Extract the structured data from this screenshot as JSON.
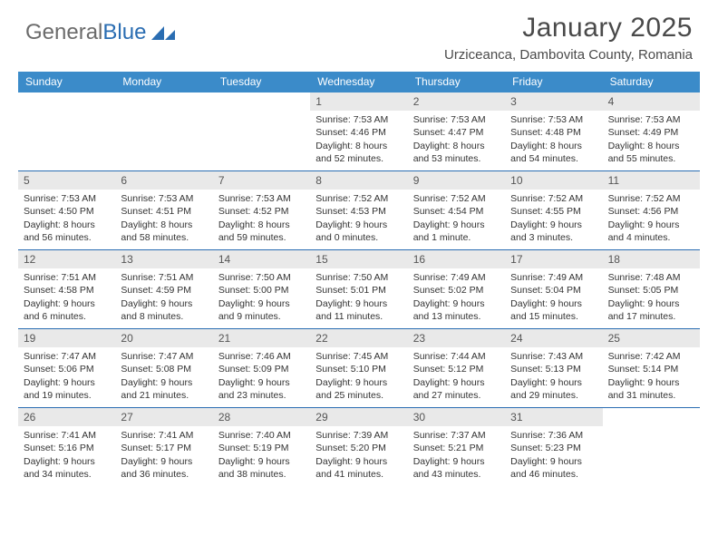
{
  "logo": {
    "text1": "General",
    "text2": "Blue"
  },
  "header": {
    "month": "January 2025",
    "location": "Urziceanca, Dambovita County, Romania"
  },
  "colors": {
    "header_bg": "#3b8bc9",
    "week_divider": "#2a6db2",
    "daynum_bg": "#e9e9e9",
    "logo_gray": "#6b6b6b",
    "logo_blue": "#2a6db2"
  },
  "dayNames": [
    "Sunday",
    "Monday",
    "Tuesday",
    "Wednesday",
    "Thursday",
    "Friday",
    "Saturday"
  ],
  "startOffset": 3,
  "days": [
    {
      "n": 1,
      "sunrise": "7:53 AM",
      "sunset": "4:46 PM",
      "daylight": "8 hours and 52 minutes."
    },
    {
      "n": 2,
      "sunrise": "7:53 AM",
      "sunset": "4:47 PM",
      "daylight": "8 hours and 53 minutes."
    },
    {
      "n": 3,
      "sunrise": "7:53 AM",
      "sunset": "4:48 PM",
      "daylight": "8 hours and 54 minutes."
    },
    {
      "n": 4,
      "sunrise": "7:53 AM",
      "sunset": "4:49 PM",
      "daylight": "8 hours and 55 minutes."
    },
    {
      "n": 5,
      "sunrise": "7:53 AM",
      "sunset": "4:50 PM",
      "daylight": "8 hours and 56 minutes."
    },
    {
      "n": 6,
      "sunrise": "7:53 AM",
      "sunset": "4:51 PM",
      "daylight": "8 hours and 58 minutes."
    },
    {
      "n": 7,
      "sunrise": "7:53 AM",
      "sunset": "4:52 PM",
      "daylight": "8 hours and 59 minutes."
    },
    {
      "n": 8,
      "sunrise": "7:52 AM",
      "sunset": "4:53 PM",
      "daylight": "9 hours and 0 minutes."
    },
    {
      "n": 9,
      "sunrise": "7:52 AM",
      "sunset": "4:54 PM",
      "daylight": "9 hours and 1 minute."
    },
    {
      "n": 10,
      "sunrise": "7:52 AM",
      "sunset": "4:55 PM",
      "daylight": "9 hours and 3 minutes."
    },
    {
      "n": 11,
      "sunrise": "7:52 AM",
      "sunset": "4:56 PM",
      "daylight": "9 hours and 4 minutes."
    },
    {
      "n": 12,
      "sunrise": "7:51 AM",
      "sunset": "4:58 PM",
      "daylight": "9 hours and 6 minutes."
    },
    {
      "n": 13,
      "sunrise": "7:51 AM",
      "sunset": "4:59 PM",
      "daylight": "9 hours and 8 minutes."
    },
    {
      "n": 14,
      "sunrise": "7:50 AM",
      "sunset": "5:00 PM",
      "daylight": "9 hours and 9 minutes."
    },
    {
      "n": 15,
      "sunrise": "7:50 AM",
      "sunset": "5:01 PM",
      "daylight": "9 hours and 11 minutes."
    },
    {
      "n": 16,
      "sunrise": "7:49 AM",
      "sunset": "5:02 PM",
      "daylight": "9 hours and 13 minutes."
    },
    {
      "n": 17,
      "sunrise": "7:49 AM",
      "sunset": "5:04 PM",
      "daylight": "9 hours and 15 minutes."
    },
    {
      "n": 18,
      "sunrise": "7:48 AM",
      "sunset": "5:05 PM",
      "daylight": "9 hours and 17 minutes."
    },
    {
      "n": 19,
      "sunrise": "7:47 AM",
      "sunset": "5:06 PM",
      "daylight": "9 hours and 19 minutes."
    },
    {
      "n": 20,
      "sunrise": "7:47 AM",
      "sunset": "5:08 PM",
      "daylight": "9 hours and 21 minutes."
    },
    {
      "n": 21,
      "sunrise": "7:46 AM",
      "sunset": "5:09 PM",
      "daylight": "9 hours and 23 minutes."
    },
    {
      "n": 22,
      "sunrise": "7:45 AM",
      "sunset": "5:10 PM",
      "daylight": "9 hours and 25 minutes."
    },
    {
      "n": 23,
      "sunrise": "7:44 AM",
      "sunset": "5:12 PM",
      "daylight": "9 hours and 27 minutes."
    },
    {
      "n": 24,
      "sunrise": "7:43 AM",
      "sunset": "5:13 PM",
      "daylight": "9 hours and 29 minutes."
    },
    {
      "n": 25,
      "sunrise": "7:42 AM",
      "sunset": "5:14 PM",
      "daylight": "9 hours and 31 minutes."
    },
    {
      "n": 26,
      "sunrise": "7:41 AM",
      "sunset": "5:16 PM",
      "daylight": "9 hours and 34 minutes."
    },
    {
      "n": 27,
      "sunrise": "7:41 AM",
      "sunset": "5:17 PM",
      "daylight": "9 hours and 36 minutes."
    },
    {
      "n": 28,
      "sunrise": "7:40 AM",
      "sunset": "5:19 PM",
      "daylight": "9 hours and 38 minutes."
    },
    {
      "n": 29,
      "sunrise": "7:39 AM",
      "sunset": "5:20 PM",
      "daylight": "9 hours and 41 minutes."
    },
    {
      "n": 30,
      "sunrise": "7:37 AM",
      "sunset": "5:21 PM",
      "daylight": "9 hours and 43 minutes."
    },
    {
      "n": 31,
      "sunrise": "7:36 AM",
      "sunset": "5:23 PM",
      "daylight": "9 hours and 46 minutes."
    }
  ],
  "labels": {
    "sunrise": "Sunrise:",
    "sunset": "Sunset:",
    "daylight": "Daylight:"
  }
}
